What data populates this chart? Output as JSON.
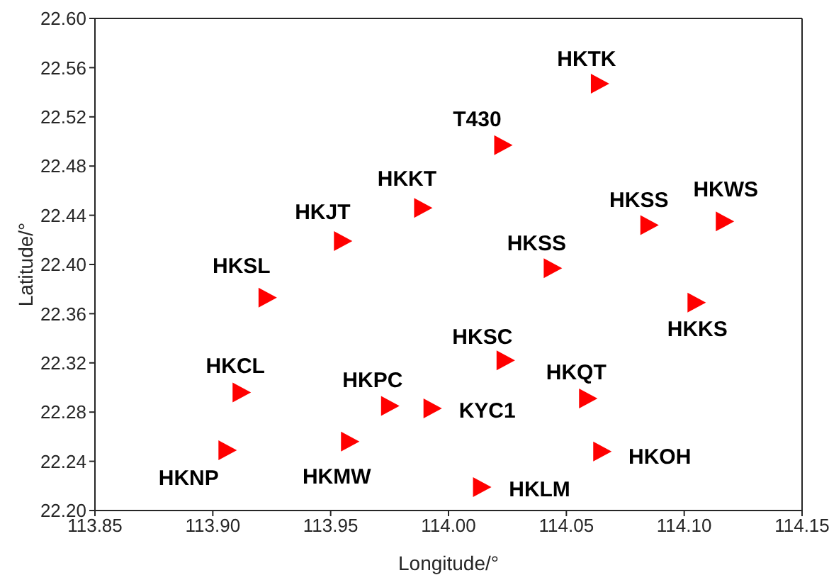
{
  "chart_data": {
    "type": "scatter",
    "xlabel": "Longitude/°",
    "ylabel": "Latitude/°",
    "color": "#ff0000",
    "marker": "triangle",
    "grid": false,
    "xlim": [
      113.85,
      114.15
    ],
    "ylim": [
      22.2,
      22.6
    ],
    "xticks": [
      113.85,
      {
        "value": 113.9,
        "label": "113.90"
      },
      113.95,
      {
        "value": 114,
        "label": "114.00"
      },
      114.05,
      {
        "value": 114.1,
        "label": "114.10"
      },
      114.15
    ],
    "yticks": [
      {
        "value": 22.2,
        "label": "22.20"
      },
      22.24,
      22.28,
      22.32,
      22.36,
      {
        "value": 22.4,
        "label": "22.40"
      },
      22.44,
      22.48,
      22.52,
      22.56,
      {
        "value": 22.6,
        "label": "22.60"
      }
    ],
    "x": [
      114.064,
      114.023,
      113.989,
      113.955,
      113.923,
      114.085,
      114.117,
      114.044,
      114.105,
      114.024,
      113.912,
      113.975,
      113.993,
      114.059,
      113.906,
      113.958,
      114.065,
      114.014
    ],
    "values": [
      22.547,
      22.497,
      22.446,
      22.419,
      22.373,
      22.432,
      22.435,
      22.397,
      22.369,
      22.322,
      22.296,
      22.285,
      22.283,
      22.291,
      22.249,
      22.256,
      22.248,
      22.219
    ],
    "annotations": [
      {
        "text": "HKTK",
        "x": 114.064,
        "y": 22.547
      },
      {
        "text": "T430",
        "x": 114.023,
        "y": 22.497
      },
      {
        "text": "HKKT",
        "x": 113.989,
        "y": 22.446
      },
      {
        "text": "HKJT",
        "x": 113.955,
        "y": 22.419
      },
      {
        "text": "HKSL",
        "x": 113.923,
        "y": 22.373
      },
      {
        "text": "HKSS",
        "x": 114.085,
        "y": 22.432
      },
      {
        "text": "HKWS",
        "x": 114.117,
        "y": 22.435
      },
      {
        "text": "HKSS",
        "x": 114.044,
        "y": 22.397
      },
      {
        "text": "HKKS",
        "x": 114.105,
        "y": 22.369
      },
      {
        "text": "HKSC",
        "x": 114.024,
        "y": 22.322
      },
      {
        "text": "HKCL",
        "x": 113.912,
        "y": 22.296
      },
      {
        "text": "HKPC",
        "x": 113.975,
        "y": 22.285
      },
      {
        "text": "KYC1",
        "x": 113.993,
        "y": 22.283
      },
      {
        "text": "HKQT",
        "x": 114.059,
        "y": 22.291
      },
      {
        "text": "HKNP",
        "x": 113.906,
        "y": 22.249
      },
      {
        "text": "HKMW",
        "x": 113.958,
        "y": 22.256
      },
      {
        "text": "HKOH",
        "x": 114.065,
        "y": 22.248
      },
      {
        "text": "HKLM",
        "x": 114.014,
        "y": 22.219
      }
    ]
  }
}
